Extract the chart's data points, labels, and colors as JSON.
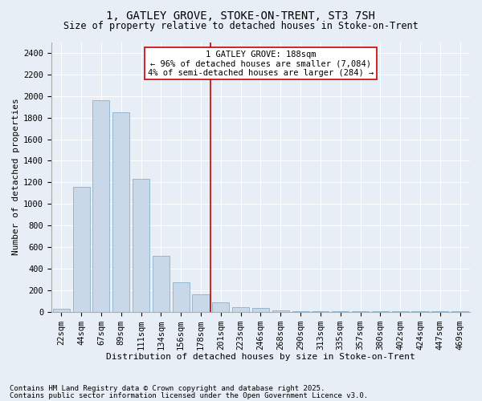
{
  "title1": "1, GATLEY GROVE, STOKE-ON-TRENT, ST3 7SH",
  "title2": "Size of property relative to detached houses in Stoke-on-Trent",
  "xlabel": "Distribution of detached houses by size in Stoke-on-Trent",
  "ylabel": "Number of detached properties",
  "categories": [
    "22sqm",
    "44sqm",
    "67sqm",
    "89sqm",
    "111sqm",
    "134sqm",
    "156sqm",
    "178sqm",
    "201sqm",
    "223sqm",
    "246sqm",
    "268sqm",
    "290sqm",
    "313sqm",
    "335sqm",
    "357sqm",
    "380sqm",
    "402sqm",
    "424sqm",
    "447sqm",
    "469sqm"
  ],
  "values": [
    25,
    1160,
    1960,
    1850,
    1230,
    520,
    275,
    160,
    90,
    45,
    38,
    10,
    5,
    5,
    5,
    2,
    2,
    2,
    1,
    1,
    1
  ],
  "bar_color": "#c8d8e8",
  "bar_edgecolor": "#8ab0cc",
  "vline_x_index": 7.5,
  "vline_color": "#cc0000",
  "annotation_text": "1 GATLEY GROVE: 188sqm\n← 96% of detached houses are smaller (7,084)\n4% of semi-detached houses are larger (284) →",
  "annotation_box_color": "#cc0000",
  "footnote1": "Contains HM Land Registry data © Crown copyright and database right 2025.",
  "footnote2": "Contains public sector information licensed under the Open Government Licence v3.0.",
  "bg_color": "#e8eef5",
  "plot_bg_color": "#e8eef5",
  "ylim": [
    0,
    2500
  ],
  "yticks": [
    0,
    200,
    400,
    600,
    800,
    1000,
    1200,
    1400,
    1600,
    1800,
    2000,
    2200,
    2400
  ],
  "title1_fontsize": 10,
  "title2_fontsize": 8.5,
  "xlabel_fontsize": 8,
  "ylabel_fontsize": 8,
  "tick_fontsize": 7.5,
  "annot_fontsize": 7.5,
  "footnote_fontsize": 6.5
}
